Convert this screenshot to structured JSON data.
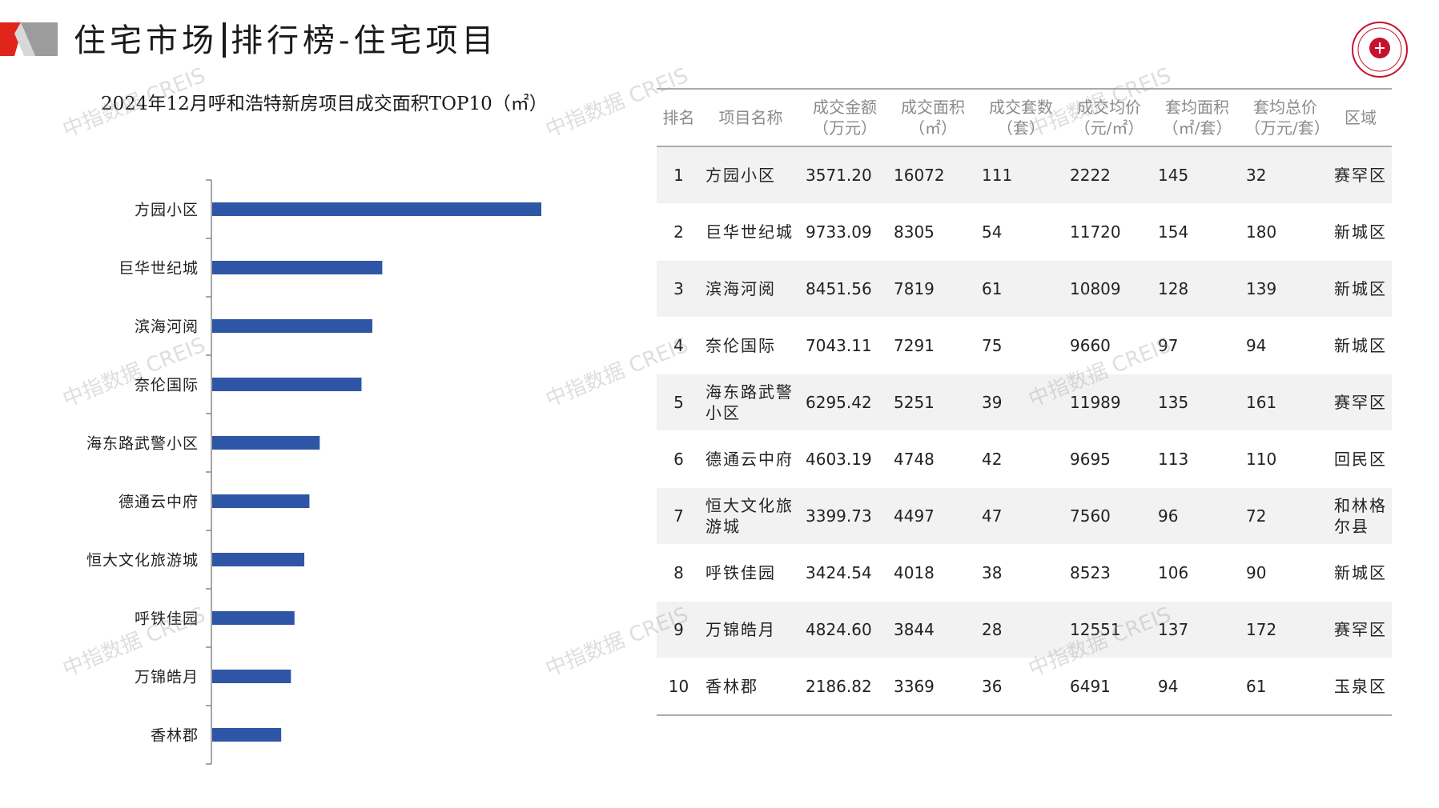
{
  "header": {
    "section": "住宅市场",
    "subsection": "排行榜-住宅项目",
    "logo_icon": "china-index-academy-seal-icon"
  },
  "colors": {
    "bar": "#2f56a6",
    "accent_red": "#e0251b",
    "accent_gray": "#9c9c9c"
  },
  "watermark": "中指数据 CREIS",
  "chart_data": {
    "type": "bar",
    "orientation": "horizontal",
    "title": "2024年12月呼和浩特新房项目成交面积TOP10（㎡）",
    "categories": [
      "方园小区",
      "巨华世纪城",
      "滨海河阅",
      "奈伦国际",
      "海东路武警小区",
      "德通云中府",
      "恒大文化旅游城",
      "呼铁佳园",
      "万锦皓月",
      "香林郡"
    ],
    "values": [
      16072,
      8305,
      7819,
      7291,
      5251,
      4748,
      4497,
      4018,
      3844,
      3369
    ],
    "xlim": [
      0,
      16072
    ],
    "grid": false,
    "legend": "none"
  },
  "table": {
    "headers": [
      [
        "排名"
      ],
      [
        "项目名称"
      ],
      [
        "成交金额",
        "（万元）"
      ],
      [
        "成交面积",
        "（㎡）"
      ],
      [
        "成交套数",
        "（套）"
      ],
      [
        "成交均价",
        "（元/㎡）"
      ],
      [
        "套均面积",
        "（㎡/套）"
      ],
      [
        "套均总价",
        "（万元/套）"
      ],
      [
        "区域"
      ]
    ],
    "rows": [
      [
        "1",
        "方园小区",
        "3571.20",
        "16072",
        "111",
        "2222",
        "145",
        "32",
        "赛罕区"
      ],
      [
        "2",
        "巨华世纪城",
        "9733.09",
        "8305",
        "54",
        "11720",
        "154",
        "180",
        "新城区"
      ],
      [
        "3",
        "滨海河阅",
        "8451.56",
        "7819",
        "61",
        "10809",
        "128",
        "139",
        "新城区"
      ],
      [
        "4",
        "奈伦国际",
        "7043.11",
        "7291",
        "75",
        "9660",
        "97",
        "94",
        "新城区"
      ],
      [
        "5",
        "海东路武警小区",
        "6295.42",
        "5251",
        "39",
        "11989",
        "135",
        "161",
        "赛罕区"
      ],
      [
        "6",
        "德通云中府",
        "4603.19",
        "4748",
        "42",
        "9695",
        "113",
        "110",
        "回民区"
      ],
      [
        "7",
        "恒大文化旅游城",
        "3399.73",
        "4497",
        "47",
        "7560",
        "96",
        "72",
        "和林格尔县"
      ],
      [
        "8",
        "呼铁佳园",
        "3424.54",
        "4018",
        "38",
        "8523",
        "106",
        "90",
        "新城区"
      ],
      [
        "9",
        "万锦皓月",
        "4824.60",
        "3844",
        "28",
        "12551",
        "137",
        "172",
        "赛罕区"
      ],
      [
        "10",
        "香林郡",
        "2186.82",
        "3369",
        "36",
        "6491",
        "94",
        "61",
        "玉泉区"
      ]
    ]
  }
}
